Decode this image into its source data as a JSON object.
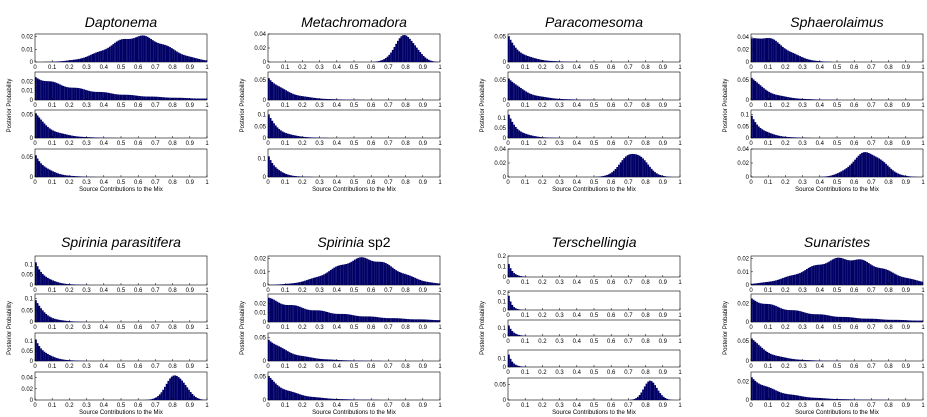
{
  "chart_data": [
    {
      "type": "histogram",
      "title": "Daptonema",
      "xlabel": "Source Contributions to the Mix",
      "ylabel": "Posterior Probability",
      "x_ticks": [
        "0",
        "0.1",
        "0.2",
        "0.3",
        "0.4",
        "0.5",
        "0.6",
        "0.7",
        "0.8",
        "0.9",
        "1"
      ],
      "panels": [
        {
          "distribution": "bell",
          "mean": 0.6,
          "sd": 0.17,
          "peak": 0.02,
          "ymax": 0.022,
          "y_ticks": [
            "0",
            "0.01",
            "0.02"
          ],
          "show_xticks": true
        },
        {
          "distribution": "decay",
          "scale": 0.35,
          "peak": 0.025,
          "ymax": 0.03,
          "y_ticks": [
            "0",
            "0.01",
            "0.02"
          ],
          "show_xticks": true
        },
        {
          "distribution": "decay",
          "scale": 0.09,
          "peak": 0.055,
          "ymax": 0.06,
          "y_ticks": [
            "0",
            "0.05"
          ],
          "show_xticks": true
        },
        {
          "distribution": "decay",
          "scale": 0.07,
          "peak": 0.06,
          "ymax": 0.07,
          "y_ticks": [
            "0",
            "0.05"
          ],
          "show_xticks": true
        }
      ]
    },
    {
      "type": "histogram",
      "title": "Metachromadora",
      "xlabel": "Source Contributions to the Mix",
      "ylabel": "Posterior Probability",
      "x_ticks": [
        "0",
        "0.1",
        "0.2",
        "0.3",
        "0.4",
        "0.5",
        "0.6",
        "0.7",
        "0.8",
        "0.9",
        "1"
      ],
      "panels": [
        {
          "distribution": "bell",
          "mean": 0.8,
          "sd": 0.06,
          "peak": 0.038,
          "ymax": 0.04,
          "y_ticks": [
            "0",
            "0.02",
            "0.04"
          ],
          "show_xticks": true
        },
        {
          "distribution": "decay",
          "scale": 0.11,
          "peak": 0.06,
          "ymax": 0.07,
          "y_ticks": [
            "0",
            "0.05"
          ],
          "show_xticks": true
        },
        {
          "distribution": "decay",
          "scale": 0.07,
          "peak": 0.1,
          "ymax": 0.12,
          "y_ticks": [
            "0",
            "0.05",
            "0.1"
          ],
          "show_xticks": true
        },
        {
          "distribution": "decay",
          "scale": 0.05,
          "peak": 0.13,
          "ymax": 0.15,
          "y_ticks": [
            "0",
            "0.1"
          ],
          "show_xticks": true
        }
      ]
    },
    {
      "type": "histogram",
      "title": "Paracomesoma",
      "xlabel": "Source Contributions to the Mix",
      "ylabel": "Posterior Probability",
      "x_ticks": [
        "0",
        "0.1",
        "0.2",
        "0.3",
        "0.4",
        "0.5",
        "0.6",
        "0.7",
        "0.8",
        "0.9",
        "1"
      ],
      "panels": [
        {
          "distribution": "decay",
          "scale": 0.08,
          "peak": 0.05,
          "ymax": 0.055,
          "y_ticks": [
            "0",
            "0.05"
          ],
          "show_xticks": true
        },
        {
          "distribution": "decay",
          "scale": 0.1,
          "peak": 0.06,
          "ymax": 0.07,
          "y_ticks": [
            "0",
            "0.05"
          ],
          "show_xticks": true
        },
        {
          "distribution": "decay",
          "scale": 0.06,
          "peak": 0.12,
          "ymax": 0.14,
          "y_ticks": [
            "0",
            "0.05",
            "0.1"
          ],
          "show_xticks": true
        },
        {
          "distribution": "bell",
          "mean": 0.73,
          "sd": 0.07,
          "peak": 0.035,
          "ymax": 0.04,
          "y_ticks": [
            "0",
            "0.02",
            "0.04"
          ],
          "show_xticks": true
        }
      ]
    },
    {
      "type": "histogram",
      "title": "Sphaerolaimus",
      "xlabel": "Source Contributions to the Mix",
      "ylabel": "Posterior Probability",
      "x_ticks": [
        "0",
        "0.1",
        "0.2",
        "0.3",
        "0.4",
        "0.5",
        "0.6",
        "0.7",
        "0.8",
        "0.9",
        "1"
      ],
      "panels": [
        {
          "distribution": "hump",
          "mean": 0.06,
          "sd": 0.13,
          "peak": 0.04,
          "ymax": 0.045,
          "y_ticks": [
            "0",
            "0.02",
            "0.04"
          ],
          "show_xticks": true
        },
        {
          "distribution": "decay",
          "scale": 0.1,
          "peak": 0.06,
          "ymax": 0.07,
          "y_ticks": [
            "0",
            "0.05"
          ],
          "show_xticks": true
        },
        {
          "distribution": "decay",
          "scale": 0.07,
          "peak": 0.1,
          "ymax": 0.12,
          "y_ticks": [
            "0",
            "0.05",
            "0.1"
          ],
          "show_xticks": true
        },
        {
          "distribution": "bell",
          "mean": 0.68,
          "sd": 0.09,
          "peak": 0.035,
          "ymax": 0.04,
          "y_ticks": [
            "0",
            "0.02",
            "0.04"
          ],
          "show_xticks": true
        }
      ]
    },
    {
      "type": "histogram",
      "title": "Spirinia parasitifera",
      "xlabel": "Source Contributions to the Mix",
      "ylabel": "Posterior Probability",
      "x_ticks": [
        "0",
        "0.1",
        "0.2",
        "0.3",
        "0.4",
        "0.5",
        "0.6",
        "0.7",
        "0.8",
        "0.9",
        "1"
      ],
      "panels": [
        {
          "distribution": "decay",
          "scale": 0.06,
          "peak": 0.12,
          "ymax": 0.14,
          "y_ticks": [
            "0",
            "0.05",
            "0.1"
          ],
          "show_xticks": true
        },
        {
          "distribution": "decay",
          "scale": 0.06,
          "peak": 0.1,
          "ymax": 0.12,
          "y_ticks": [
            "0",
            "0.05",
            "0.1"
          ],
          "show_xticks": true
        },
        {
          "distribution": "decay",
          "scale": 0.06,
          "peak": 0.12,
          "ymax": 0.14,
          "y_ticks": [
            "0",
            "0.05",
            "0.1"
          ],
          "show_xticks": true
        },
        {
          "distribution": "bell",
          "mean": 0.82,
          "sd": 0.055,
          "peak": 0.045,
          "ymax": 0.05,
          "y_ticks": [
            "0",
            "0.02",
            "0.04"
          ],
          "show_xticks": true
        }
      ]
    },
    {
      "type": "histogram",
      "title": "Spirinia",
      "title_suffix": " sp2",
      "xlabel": "Source Contributions to the Mix",
      "ylabel": "Posterior Probability",
      "x_ticks": [
        "0",
        "0.1",
        "0.2",
        "0.3",
        "0.4",
        "0.5",
        "0.6",
        "0.7",
        "0.8",
        "0.9",
        "1"
      ],
      "panels": [
        {
          "distribution": "bell",
          "mean": 0.56,
          "sd": 0.18,
          "peak": 0.02,
          "ymax": 0.022,
          "y_ticks": [
            "0",
            "0.01",
            "0.02"
          ],
          "show_xticks": true
        },
        {
          "distribution": "decay",
          "scale": 0.4,
          "peak": 0.025,
          "ymax": 0.03,
          "y_ticks": [
            "0",
            "0.01",
            "0.02"
          ],
          "show_xticks": true
        },
        {
          "distribution": "decay",
          "scale": 0.13,
          "peak": 0.05,
          "ymax": 0.06,
          "y_ticks": [
            "0",
            "0.05"
          ],
          "show_xticks": true
        },
        {
          "distribution": "decay",
          "scale": 0.13,
          "peak": 0.05,
          "ymax": 0.06,
          "y_ticks": [
            "0",
            "0.05"
          ],
          "show_xticks": true
        }
      ]
    },
    {
      "type": "histogram",
      "title": "Terschellingia",
      "xlabel": "Source Contributions to the Mix",
      "ylabel": "Posterior Probability",
      "x_ticks": [
        "0",
        "0.1",
        "0.2",
        "0.3",
        "0.4",
        "0.5",
        "0.6",
        "0.7",
        "0.8",
        "0.9",
        "1"
      ],
      "panels": [
        {
          "distribution": "decay",
          "scale": 0.025,
          "peak": 0.16,
          "ymax": 0.2,
          "y_ticks": [
            "0",
            "0.1",
            "0.2"
          ],
          "show_xticks": true
        },
        {
          "distribution": "decay",
          "scale": 0.02,
          "peak": 0.2,
          "ymax": 0.22,
          "y_ticks": [
            "0",
            "0.1",
            "0.2"
          ],
          "show_xticks": true
        },
        {
          "distribution": "decay",
          "scale": 0.025,
          "peak": 0.17,
          "ymax": 0.2,
          "y_ticks": [
            "0",
            "0.1"
          ],
          "show_xticks": true
        },
        {
          "distribution": "decay",
          "scale": 0.025,
          "peak": 0.17,
          "ymax": 0.2,
          "y_ticks": [
            "0",
            "0.1"
          ],
          "show_xticks": true
        },
        {
          "distribution": "bell",
          "mean": 0.83,
          "sd": 0.04,
          "peak": 0.06,
          "ymax": 0.07,
          "y_ticks": [
            "0",
            "0.05"
          ],
          "show_xticks": true
        }
      ]
    },
    {
      "type": "histogram",
      "title": "Sunaristes",
      "xlabel": "Source Contributions to the Mix",
      "ylabel": "Posterior Probability",
      "x_ticks": [
        "0",
        "0.1",
        "0.2",
        "0.3",
        "0.4",
        "0.5",
        "0.6",
        "0.7",
        "0.8",
        "0.9",
        "1"
      ],
      "panels": [
        {
          "distribution": "bell",
          "mean": 0.55,
          "sd": 0.22,
          "peak": 0.02,
          "ymax": 0.022,
          "y_ticks": [
            "0",
            "0.01",
            "0.02"
          ],
          "show_xticks": true
        },
        {
          "distribution": "decay",
          "scale": 0.35,
          "peak": 0.025,
          "ymax": 0.03,
          "y_ticks": [
            "0",
            "0.02"
          ],
          "show_xticks": true
        },
        {
          "distribution": "decay",
          "scale": 0.1,
          "peak": 0.06,
          "ymax": 0.07,
          "y_ticks": [
            "0",
            "0.05"
          ],
          "show_xticks": true
        },
        {
          "distribution": "decay",
          "scale": 0.16,
          "peak": 0.025,
          "ymax": 0.03,
          "y_ticks": [
            "0",
            "0.02"
          ],
          "show_xticks": true
        }
      ]
    }
  ],
  "colors": {
    "bar": "#000066",
    "axes": "#000000",
    "background": "#ffffff"
  }
}
